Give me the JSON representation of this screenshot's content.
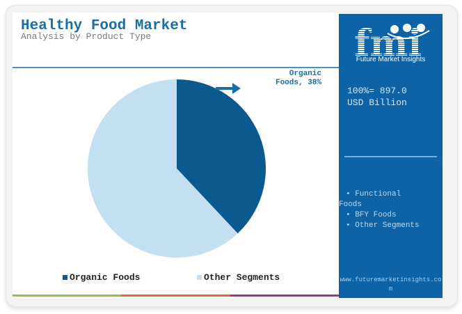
{
  "header": {
    "title": "Healthy Food Market",
    "subtitle": "Analysis by Product Type"
  },
  "callout": {
    "line1": "Organic",
    "line2": "Foods, 38%"
  },
  "legend": [
    {
      "label": "Organic Foods",
      "color": "#0b5a8f"
    },
    {
      "label": "Other Segments",
      "color": "#c3e0f2"
    }
  ],
  "bottom_bars": [
    "#8cc152",
    "#e0693a",
    "#8e3a8e"
  ],
  "side_panel": {
    "brand_text": "Future Market Insights",
    "logo_letters": "fmi",
    "total_line1": "100%= 897.0",
    "total_line2": "USD Billion",
    "segments": [
      "• Functional",
      "Foods",
      "• BFY Foods",
      "• Other Segments"
    ],
    "url": "www.futuremarketinsights.com"
  },
  "chart_data": {
    "type": "pie",
    "title": "Healthy Food Market",
    "subtitle": "Analysis by Product Type",
    "categories": [
      "Organic Foods",
      "Other Segments"
    ],
    "values": [
      38,
      62
    ],
    "colors": [
      "#0b5a8f",
      "#c3e0f2"
    ],
    "annotations": [
      "Organic Foods, 38%"
    ],
    "total": "100%= 897.0 USD Billion",
    "legend_position": "bottom"
  }
}
